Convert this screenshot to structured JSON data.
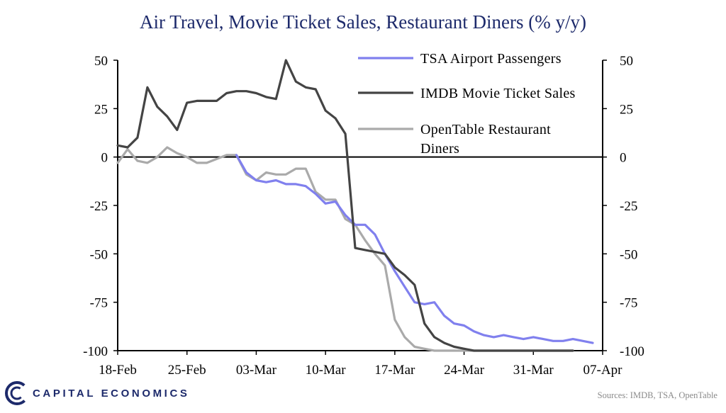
{
  "chart_data": {
    "type": "line",
    "title": "Air Travel, Movie Ticket Sales, Restaurant Diners (% y/y)",
    "ylim": [
      -100,
      50
    ],
    "yticks": [
      50,
      25,
      0,
      -25,
      -50,
      -75,
      -100
    ],
    "ytick_labels": [
      "50",
      "25",
      "0",
      "-25",
      "-50",
      "-75",
      "-100"
    ],
    "xlim": [
      0,
      49
    ],
    "xticks": [
      0,
      7,
      14,
      21,
      28,
      35,
      42,
      49
    ],
    "xtick_labels": [
      "18-Feb",
      "25-Feb",
      "03-Mar",
      "10-Mar",
      "17-Mar",
      "24-Mar",
      "31-Mar",
      "07-Apr"
    ],
    "series": [
      {
        "name": "TSA Airport Passengers",
        "color": "#8080ee",
        "x": [
          12,
          13,
          14,
          15,
          16,
          17,
          18,
          19,
          20,
          21,
          22,
          23,
          24,
          25,
          26,
          27,
          28,
          29,
          30,
          31,
          32,
          33,
          34,
          35,
          36,
          37,
          38,
          39,
          40,
          41,
          42,
          43,
          44,
          45,
          46,
          47,
          48
        ],
        "values": [
          1,
          -8,
          -12,
          -13,
          -12,
          -14,
          -14,
          -15,
          -19,
          -24,
          -23,
          -30,
          -35,
          -35,
          -40,
          -50,
          -59,
          -67,
          -75,
          -76,
          -75,
          -82,
          -86,
          -87,
          -90,
          -92,
          -93,
          -92,
          -93,
          -94,
          -93,
          -94,
          -95,
          -95,
          -94,
          -95,
          -96
        ]
      },
      {
        "name": "IMDB Movie Ticket Sales",
        "color": "#444444",
        "x": [
          0,
          1,
          2,
          3,
          4,
          5,
          6,
          7,
          8,
          9,
          10,
          11,
          12,
          13,
          14,
          15,
          16,
          17,
          18,
          19,
          20,
          21,
          22,
          23,
          24,
          25,
          26,
          27,
          28,
          29,
          30,
          31,
          32,
          33,
          34,
          35,
          36,
          37,
          38,
          39,
          40,
          41,
          42,
          43,
          44,
          45,
          46
        ],
        "values": [
          6,
          5,
          10,
          36,
          26,
          21,
          14,
          28,
          29,
          29,
          29,
          33,
          34,
          34,
          33,
          31,
          30,
          50,
          39,
          36,
          35,
          24,
          20,
          12,
          -47,
          -48,
          -49,
          -50,
          -57,
          -61,
          -66,
          -86,
          -93,
          -96,
          -98,
          -99,
          -100,
          -100,
          -100,
          -100,
          -100,
          -100,
          -100,
          -100,
          -100,
          -100,
          -100
        ]
      },
      {
        "name": "OpenTable Restaurant Diners",
        "color": "#aaaaaa",
        "x": [
          0,
          1,
          2,
          3,
          4,
          5,
          6,
          7,
          8,
          9,
          10,
          11,
          12,
          13,
          14,
          15,
          16,
          17,
          18,
          19,
          20,
          21,
          22,
          23,
          24,
          25,
          26,
          27,
          28,
          29,
          30,
          31,
          32,
          33,
          34,
          35,
          36,
          37,
          38,
          39,
          40,
          41,
          42,
          43,
          44,
          45,
          46
        ],
        "values": [
          -3,
          4,
          -2,
          -3,
          0,
          5,
          2,
          0,
          -3,
          -3,
          -1,
          1,
          1,
          -9,
          -12,
          -8,
          -9,
          -9,
          -6,
          -6,
          -18,
          -22,
          -22,
          -32,
          -35,
          -43,
          -50,
          -56,
          -84,
          -93,
          -98,
          -99,
          -100,
          -100,
          -100,
          -100,
          -100,
          -100,
          -100,
          -100,
          -100,
          -100,
          -100,
          -100,
          -100,
          -100,
          -100
        ]
      }
    ],
    "legend": {
      "placement": "top-right",
      "labels": [
        "TSA Airport Passengers",
        "IMDB Movie Ticket Sales",
        "OpenTable Restaurant",
        "Diners"
      ]
    },
    "grid": false,
    "zero_line": true
  },
  "footer": {
    "brand": "CAPITAL ECONOMICS",
    "sources": "Sources: IMDB, TSA, OpenTable",
    "brand_color": "#1d2a6b"
  }
}
